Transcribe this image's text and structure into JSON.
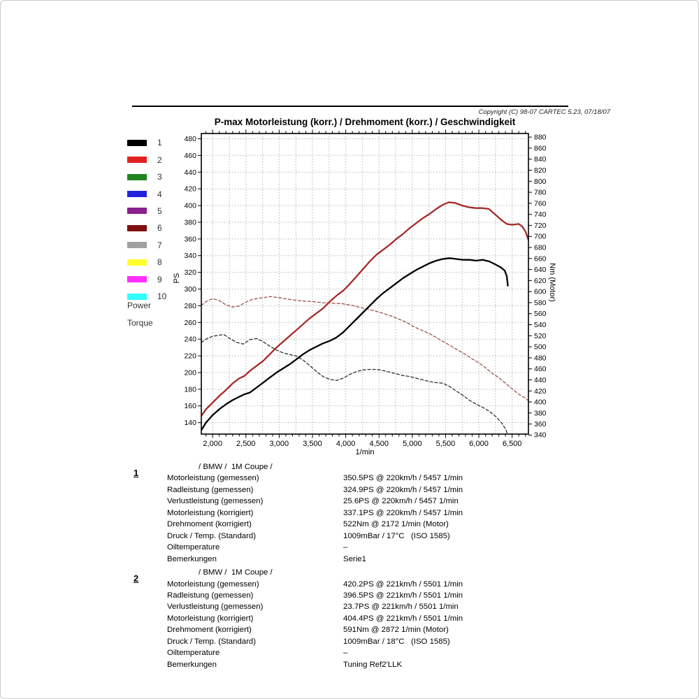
{
  "page": {
    "copyright": "Copyright (C) 98-07 CARTEC 5.23, 07/18/07"
  },
  "legend": {
    "items": [
      {
        "label": "1",
        "color": "#000000"
      },
      {
        "label": "2",
        "color": "#e22020"
      },
      {
        "label": "3",
        "color": "#218421"
      },
      {
        "label": "4",
        "color": "#2222dd"
      },
      {
        "label": "5",
        "color": "#8b1f8b"
      },
      {
        "label": "6",
        "color": "#7e1111"
      },
      {
        "label": "7",
        "color": "#a0a0a0"
      },
      {
        "label": "8",
        "color": "#ffff2e"
      },
      {
        "label": "9",
        "color": "#ff2eff"
      },
      {
        "label": "10",
        "color": "#2effff"
      }
    ],
    "power_label": "Power",
    "torque_label": "Torque"
  },
  "chart_data": {
    "type": "line",
    "title": "P-max Motorleistung (korr.) / Drehmoment (korr.) / Geschwindigkeit",
    "grid": true,
    "grid_color": "#b3b3b3",
    "x_axis": {
      "label": "1/min",
      "min": 1830,
      "max": 6745,
      "major_ticks": [
        2000,
        2500,
        3000,
        3500,
        4000,
        4500,
        5000,
        5500,
        6000,
        6500
      ],
      "major_tick_labels": [
        "2,000",
        "2,500",
        "3,000",
        "3,500",
        "4,000",
        "4,500",
        "5,000",
        "5,500",
        "6,000",
        "6,500"
      ],
      "minor_step": 100,
      "grid_step": 250
    },
    "y_axis_left": {
      "label": "PS",
      "min": 126.3,
      "max": 486.3,
      "ticks": [
        140,
        160,
        180,
        200,
        220,
        240,
        260,
        280,
        300,
        320,
        340,
        360,
        380,
        400,
        420,
        440,
        460,
        480
      ]
    },
    "y_axis_right": {
      "label": "Nm (Motor)",
      "min": 341.8,
      "max": 886.5,
      "ticks": [
        340,
        360,
        380,
        400,
        420,
        440,
        460,
        480,
        500,
        520,
        540,
        560,
        580,
        600,
        620,
        640,
        660,
        680,
        700,
        720,
        740,
        760,
        780,
        800,
        820,
        840,
        860,
        880
      ]
    },
    "series": [
      {
        "id": "torque-run-1",
        "run": "1",
        "quantity": "Torque",
        "axis": "right",
        "unit": "Nm",
        "color": "#2f2f2f",
        "dash": "dashed",
        "width": 1.3,
        "peak": {
          "value_nm": 522,
          "rpm": 2172
        },
        "points": [
          [
            1830,
            508
          ],
          [
            1900,
            514
          ],
          [
            2000,
            519
          ],
          [
            2100,
            521
          ],
          [
            2170,
            522
          ],
          [
            2260,
            515
          ],
          [
            2360,
            508
          ],
          [
            2460,
            505
          ],
          [
            2560,
            513
          ],
          [
            2660,
            515
          ],
          [
            2760,
            509
          ],
          [
            2860,
            501
          ],
          [
            2960,
            494
          ],
          [
            3060,
            489
          ],
          [
            3160,
            486
          ],
          [
            3260,
            483
          ],
          [
            3360,
            476
          ],
          [
            3460,
            466
          ],
          [
            3560,
            455
          ],
          [
            3660,
            446
          ],
          [
            3760,
            441
          ],
          [
            3860,
            439
          ],
          [
            3960,
            443
          ],
          [
            4060,
            450
          ],
          [
            4160,
            455
          ],
          [
            4260,
            458
          ],
          [
            4360,
            459
          ],
          [
            4460,
            459
          ],
          [
            4560,
            457
          ],
          [
            4660,
            454
          ],
          [
            4760,
            451
          ],
          [
            4860,
            448
          ],
          [
            4960,
            446
          ],
          [
            5060,
            443
          ],
          [
            5160,
            440
          ],
          [
            5260,
            437
          ],
          [
            5360,
            435
          ],
          [
            5460,
            434
          ],
          [
            5560,
            428
          ],
          [
            5660,
            420
          ],
          [
            5760,
            412
          ],
          [
            5860,
            403
          ],
          [
            5960,
            396
          ],
          [
            6060,
            390
          ],
          [
            6160,
            383
          ],
          [
            6260,
            373
          ],
          [
            6350,
            361
          ],
          [
            6400,
            351
          ],
          [
            6435,
            341
          ]
        ]
      },
      {
        "id": "torque-run-2",
        "run": "2",
        "quantity": "Torque",
        "axis": "right",
        "unit": "Nm",
        "color": "#9d544b",
        "dash": "dashed",
        "width": 1.3,
        "peak": {
          "value_nm": 591,
          "rpm": 2872
        },
        "points": [
          [
            1830,
            575
          ],
          [
            1900,
            582
          ],
          [
            2000,
            587
          ],
          [
            2100,
            584
          ],
          [
            2200,
            576
          ],
          [
            2300,
            572
          ],
          [
            2400,
            574
          ],
          [
            2500,
            581
          ],
          [
            2600,
            586
          ],
          [
            2700,
            588
          ],
          [
            2870,
            591
          ],
          [
            3000,
            589
          ],
          [
            3100,
            587
          ],
          [
            3200,
            585
          ],
          [
            3350,
            583
          ],
          [
            3500,
            582
          ],
          [
            3650,
            580
          ],
          [
            3800,
            579
          ],
          [
            3950,
            578
          ],
          [
            4100,
            575
          ],
          [
            4200,
            572
          ],
          [
            4300,
            569
          ],
          [
            4400,
            566
          ],
          [
            4500,
            563
          ],
          [
            4600,
            559
          ],
          [
            4700,
            555
          ],
          [
            4800,
            550
          ],
          [
            4900,
            545
          ],
          [
            5000,
            538
          ],
          [
            5100,
            532
          ],
          [
            5200,
            527
          ],
          [
            5300,
            521
          ],
          [
            5400,
            514
          ],
          [
            5500,
            507
          ],
          [
            5600,
            500
          ],
          [
            5700,
            493
          ],
          [
            5800,
            486
          ],
          [
            5900,
            478
          ],
          [
            6000,
            471
          ],
          [
            6100,
            462
          ],
          [
            6200,
            452
          ],
          [
            6300,
            444
          ],
          [
            6400,
            434
          ],
          [
            6500,
            424
          ],
          [
            6600,
            414
          ],
          [
            6700,
            407
          ],
          [
            6745,
            402
          ]
        ]
      },
      {
        "id": "power-run-1",
        "run": "1",
        "quantity": "Power",
        "axis": "left",
        "unit": "PS",
        "color": "#000000",
        "dash": "solid",
        "width": 2.3,
        "peak": {
          "value_ps": 337.1,
          "rpm": 5457
        },
        "points": [
          [
            1830,
            131
          ],
          [
            1900,
            140
          ],
          [
            2000,
            149
          ],
          [
            2100,
            156
          ],
          [
            2200,
            162
          ],
          [
            2300,
            167
          ],
          [
            2400,
            171
          ],
          [
            2480,
            174
          ],
          [
            2560,
            176
          ],
          [
            2660,
            182
          ],
          [
            2760,
            188
          ],
          [
            2860,
            194
          ],
          [
            2960,
            200
          ],
          [
            3060,
            205
          ],
          [
            3160,
            210
          ],
          [
            3260,
            216
          ],
          [
            3360,
            222
          ],
          [
            3460,
            227
          ],
          [
            3560,
            231
          ],
          [
            3660,
            235
          ],
          [
            3760,
            238
          ],
          [
            3860,
            242
          ],
          [
            3960,
            248
          ],
          [
            4060,
            256
          ],
          [
            4160,
            264
          ],
          [
            4260,
            272
          ],
          [
            4360,
            280
          ],
          [
            4460,
            288
          ],
          [
            4560,
            295
          ],
          [
            4660,
            301
          ],
          [
            4760,
            307
          ],
          [
            4860,
            313
          ],
          [
            4960,
            318
          ],
          [
            5060,
            323
          ],
          [
            5160,
            327
          ],
          [
            5260,
            331
          ],
          [
            5360,
            334
          ],
          [
            5460,
            336
          ],
          [
            5560,
            337
          ],
          [
            5660,
            336
          ],
          [
            5760,
            335
          ],
          [
            5860,
            335
          ],
          [
            5960,
            334
          ],
          [
            6060,
            335
          ],
          [
            6160,
            333
          ],
          [
            6260,
            329
          ],
          [
            6330,
            326
          ],
          [
            6390,
            322
          ],
          [
            6420,
            315
          ],
          [
            6435,
            304
          ]
        ]
      },
      {
        "id": "power-run-2",
        "run": "2",
        "quantity": "Power",
        "axis": "left",
        "unit": "PS",
        "color": "#a62a28",
        "dash": "solid",
        "width": 2.3,
        "peak": {
          "value_ps": 404.4,
          "rpm": 5501
        },
        "points": [
          [
            1830,
            148
          ],
          [
            1900,
            156
          ],
          [
            2000,
            164
          ],
          [
            2100,
            172
          ],
          [
            2200,
            179
          ],
          [
            2300,
            187
          ],
          [
            2400,
            193
          ],
          [
            2480,
            196
          ],
          [
            2560,
            202
          ],
          [
            2660,
            208
          ],
          [
            2760,
            214
          ],
          [
            2860,
            222
          ],
          [
            2960,
            230
          ],
          [
            3060,
            237
          ],
          [
            3160,
            244
          ],
          [
            3260,
            251
          ],
          [
            3360,
            258
          ],
          [
            3460,
            265
          ],
          [
            3560,
            271
          ],
          [
            3660,
            277
          ],
          [
            3760,
            285
          ],
          [
            3860,
            292
          ],
          [
            3960,
            298
          ],
          [
            4060,
            306
          ],
          [
            4160,
            315
          ],
          [
            4260,
            324
          ],
          [
            4360,
            333
          ],
          [
            4460,
            341
          ],
          [
            4560,
            347
          ],
          [
            4660,
            353
          ],
          [
            4760,
            360
          ],
          [
            4860,
            366
          ],
          [
            4960,
            373
          ],
          [
            5060,
            379
          ],
          [
            5160,
            385
          ],
          [
            5260,
            390
          ],
          [
            5360,
            396
          ],
          [
            5460,
            401
          ],
          [
            5550,
            404
          ],
          [
            5650,
            403
          ],
          [
            5750,
            400
          ],
          [
            5850,
            398
          ],
          [
            5950,
            397
          ],
          [
            6050,
            397
          ],
          [
            6150,
            396
          ],
          [
            6250,
            389
          ],
          [
            6350,
            382
          ],
          [
            6420,
            378
          ],
          [
            6500,
            377
          ],
          [
            6600,
            378
          ],
          [
            6650,
            375
          ],
          [
            6700,
            369
          ],
          [
            6745,
            359
          ]
        ]
      }
    ]
  },
  "results": [
    {
      "index": "1",
      "header": "/ BMW /  1M Coupe /",
      "rows": [
        {
          "label": "Motorleistung (gemessen)",
          "value": "350.5PS @ 220km/h / 5457 1/min"
        },
        {
          "label": "Radleistung (gemessen)",
          "value": "324.9PS @ 220km/h / 5457 1/min"
        },
        {
          "label": "Verlustleistung (gemessen)",
          "value": "25.6PS @ 220km/h / 5457 1/min"
        },
        {
          "label": "Motorleistung (korrigiert)",
          "value": "337.1PS @ 220km/h / 5457 1/min"
        },
        {
          "label": "Drehmoment (korrigiert)",
          "value": "522Nm @ 2172 1/min (Motor)"
        },
        {
          "label": "Druck / Temp. (Standard)",
          "value": "1009mBar / 17°C   (ISO 1585)"
        },
        {
          "label": "Oiltemperature",
          "value": "–"
        },
        {
          "label": "Bemerkungen",
          "value": "Serie1"
        }
      ]
    },
    {
      "index": "2",
      "header": "/ BMW /  1M Coupe /",
      "rows": [
        {
          "label": "Motorleistung (gemessen)",
          "value": "420.2PS @ 221km/h / 5501 1/min"
        },
        {
          "label": "Radleistung (gemessen)",
          "value": "396.5PS @ 221km/h / 5501 1/min"
        },
        {
          "label": "Verlustleistung (gemessen)",
          "value": "23.7PS @ 221km/h / 5501 1/min"
        },
        {
          "label": "Motorleistung (korrigiert)",
          "value": "404.4PS @ 221km/h / 5501 1/min"
        },
        {
          "label": "Drehmoment (korrigiert)",
          "value": "591Nm @ 2872 1/min (Motor)"
        },
        {
          "label": "Druck / Temp. (Standard)",
          "value": "1009mBar / 18°C   (ISO 1585)"
        },
        {
          "label": "Oiltemperature",
          "value": "–"
        },
        {
          "label": "Bemerkungen",
          "value": "Tuning Ref2'LLK"
        }
      ]
    }
  ]
}
